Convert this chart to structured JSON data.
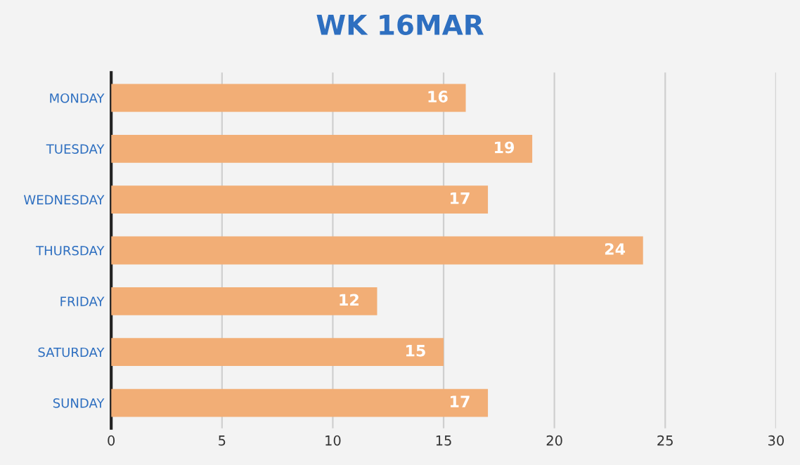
{
  "chart_data": {
    "type": "bar",
    "title": "WK 16MAR",
    "orientation": "horizontal",
    "categories": [
      "MONDAY",
      "TUESDAY",
      "WEDNESDAY",
      "THURSDAY",
      "FRIDAY",
      "SATURDAY",
      "SUNDAY"
    ],
    "values": [
      16,
      19,
      17,
      24,
      12,
      15,
      17
    ],
    "color": "#f2ae76",
    "xlim": [
      0,
      30
    ],
    "xticks": [
      0,
      5,
      10,
      15,
      20,
      25,
      30
    ],
    "grid": "x",
    "data_labels": true
  }
}
